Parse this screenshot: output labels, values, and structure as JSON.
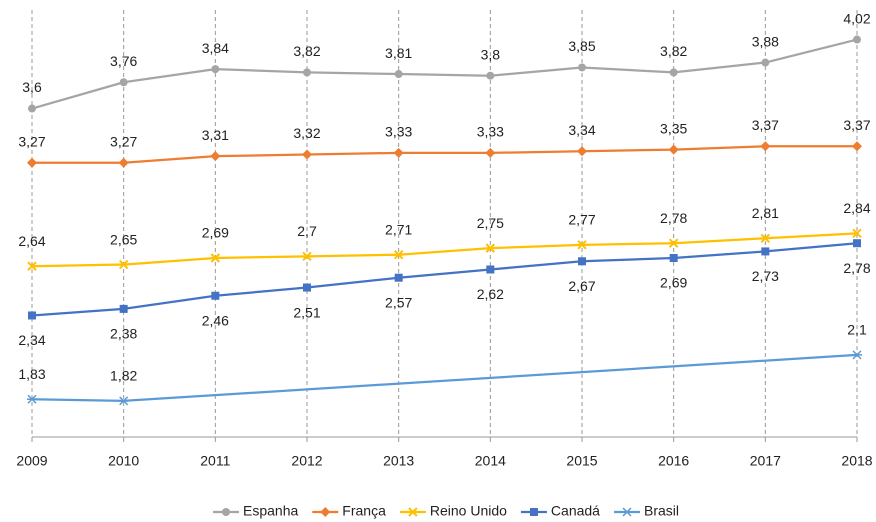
{
  "chart_data": {
    "type": "line",
    "categories": [
      "2009",
      "2010",
      "2011",
      "2012",
      "2013",
      "2014",
      "2015",
      "2016",
      "2017",
      "2018"
    ],
    "series": [
      {
        "name": "Espanha",
        "color": "#a5a5a5",
        "values": [
          3.6,
          3.76,
          3.84,
          3.82,
          3.81,
          3.8,
          3.85,
          3.82,
          3.88,
          4.02
        ],
        "value_labels": [
          "3,6",
          "3,76",
          "3,84",
          "3,82",
          "3,81",
          "3,8",
          "3,85",
          "3,82",
          "3,88",
          "4,02"
        ]
      },
      {
        "name": "França",
        "color": "#ed7d31",
        "values": [
          3.27,
          3.27,
          3.31,
          3.32,
          3.33,
          3.33,
          3.34,
          3.35,
          3.37,
          3.37
        ],
        "value_labels": [
          "3,27",
          "3,27",
          "3,31",
          "3,32",
          "3,33",
          "3,33",
          "3,34",
          "3,35",
          "3,37",
          "3,37"
        ]
      },
      {
        "name": "Reino Unido",
        "color": "#ffc000",
        "values": [
          2.64,
          2.65,
          2.69,
          2.7,
          2.71,
          2.75,
          2.77,
          2.78,
          2.81,
          2.84
        ],
        "value_labels": [
          "2,64",
          "2,65",
          "2,69",
          "2,7",
          "2,71",
          "2,75",
          "2,77",
          "2,78",
          "2,81",
          "2,84"
        ]
      },
      {
        "name": "Canadá",
        "color": "#4472c4",
        "values": [
          2.34,
          2.38,
          2.46,
          2.51,
          2.57,
          2.62,
          2.67,
          2.69,
          2.73,
          2.78
        ],
        "value_labels": [
          "2,34",
          "2,38",
          "2,46",
          "2,51",
          "2,57",
          "2,62",
          "2,67",
          "2,69",
          "2,73",
          "2,78"
        ]
      },
      {
        "name": "Brasil",
        "color": "#5b9bd5",
        "values": [
          1.83,
          1.82,
          null,
          null,
          null,
          null,
          null,
          null,
          null,
          2.1
        ],
        "value_labels": [
          "1,83",
          "1,82",
          null,
          null,
          null,
          null,
          null,
          null,
          null,
          "2,1"
        ]
      }
    ],
    "ylim": [
      1.6,
      4.2
    ],
    "grid": true,
    "legend": "bottom",
    "connect_gaps": true
  }
}
